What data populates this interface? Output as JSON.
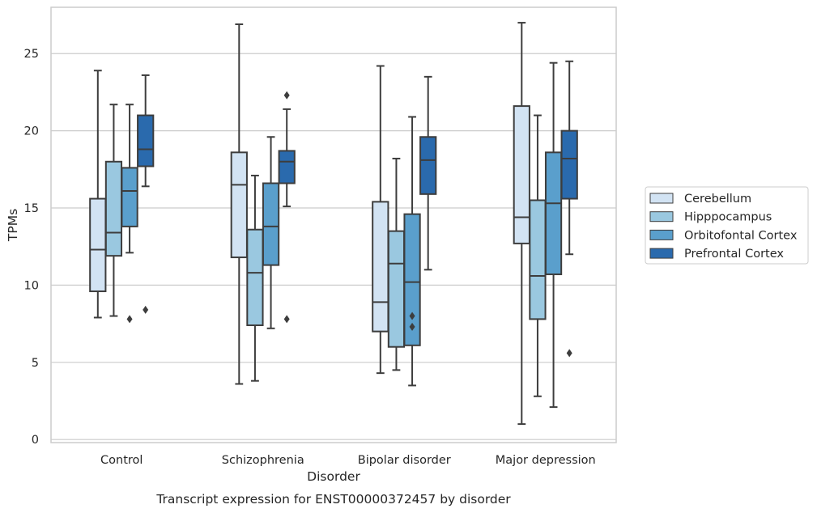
{
  "chart_data": {
    "type": "box",
    "title": "",
    "caption": "Transcript expression for ENST00000372457 by disorder",
    "xlabel": "Disorder",
    "ylabel": "TPMs",
    "ylim": [
      -0.2,
      28
    ],
    "yticks": [
      0,
      5,
      10,
      15,
      20,
      25
    ],
    "grid": "horizontal",
    "legend_position": "right",
    "categories": [
      "Control",
      "Schizophrenia",
      "Bipolar disorder",
      "Major depression"
    ],
    "series": [
      {
        "name": "Cerebellum",
        "color": "#d2e3f3",
        "boxes": [
          {
            "whisker_low": 7.9,
            "q1": 9.6,
            "median": 12.3,
            "q3": 15.6,
            "whisker_high": 23.9,
            "outliers": []
          },
          {
            "whisker_low": 3.6,
            "q1": 11.8,
            "median": 16.5,
            "q3": 18.6,
            "whisker_high": 26.9,
            "outliers": []
          },
          {
            "whisker_low": 4.3,
            "q1": 7.0,
            "median": 8.9,
            "q3": 15.4,
            "whisker_high": 24.2,
            "outliers": []
          },
          {
            "whisker_low": 1.0,
            "q1": 12.7,
            "median": 14.4,
            "q3": 21.6,
            "whisker_high": 27.0,
            "outliers": []
          }
        ]
      },
      {
        "name": "Hipppocampus",
        "color": "#9ac8e0",
        "boxes": [
          {
            "whisker_low": 8.0,
            "q1": 11.9,
            "median": 13.4,
            "q3": 18.0,
            "whisker_high": 21.7,
            "outliers": []
          },
          {
            "whisker_low": 3.8,
            "q1": 7.4,
            "median": 10.8,
            "q3": 13.6,
            "whisker_high": 17.1,
            "outliers": []
          },
          {
            "whisker_low": 4.5,
            "q1": 6.0,
            "median": 11.4,
            "q3": 13.5,
            "whisker_high": 18.2,
            "outliers": []
          },
          {
            "whisker_low": 2.8,
            "q1": 7.8,
            "median": 10.6,
            "q3": 15.5,
            "whisker_high": 21.0,
            "outliers": []
          }
        ]
      },
      {
        "name": "Orbitofontal Cortex",
        "color": "#5a9fcc",
        "boxes": [
          {
            "whisker_low": 12.1,
            "q1": 13.8,
            "median": 16.1,
            "q3": 17.6,
            "whisker_high": 21.7,
            "outliers": [
              7.8
            ]
          },
          {
            "whisker_low": 7.2,
            "q1": 11.3,
            "median": 13.8,
            "q3": 16.6,
            "whisker_high": 19.6,
            "outliers": []
          },
          {
            "whisker_low": 3.5,
            "q1": 6.1,
            "median": 10.2,
            "q3": 14.6,
            "whisker_high": 20.9,
            "outliers": [
              8.0,
              7.3
            ]
          },
          {
            "whisker_low": 2.1,
            "q1": 10.7,
            "median": 15.3,
            "q3": 18.6,
            "whisker_high": 24.4,
            "outliers": []
          }
        ]
      },
      {
        "name": "Prefrontal Cortex",
        "color": "#2a6aad",
        "boxes": [
          {
            "whisker_low": 16.4,
            "q1": 17.7,
            "median": 18.8,
            "q3": 21.0,
            "whisker_high": 23.6,
            "outliers": [
              8.4
            ]
          },
          {
            "whisker_low": 15.1,
            "q1": 16.6,
            "median": 18.0,
            "q3": 18.7,
            "whisker_high": 21.4,
            "outliers": [
              7.8,
              22.3
            ]
          },
          {
            "whisker_low": 11.0,
            "q1": 15.9,
            "median": 18.1,
            "q3": 19.6,
            "whisker_high": 23.5,
            "outliers": []
          },
          {
            "whisker_low": 12.0,
            "q1": 15.6,
            "median": 18.2,
            "q3": 20.0,
            "whisker_high": 24.5,
            "outliers": [
              5.6
            ]
          }
        ]
      }
    ]
  }
}
